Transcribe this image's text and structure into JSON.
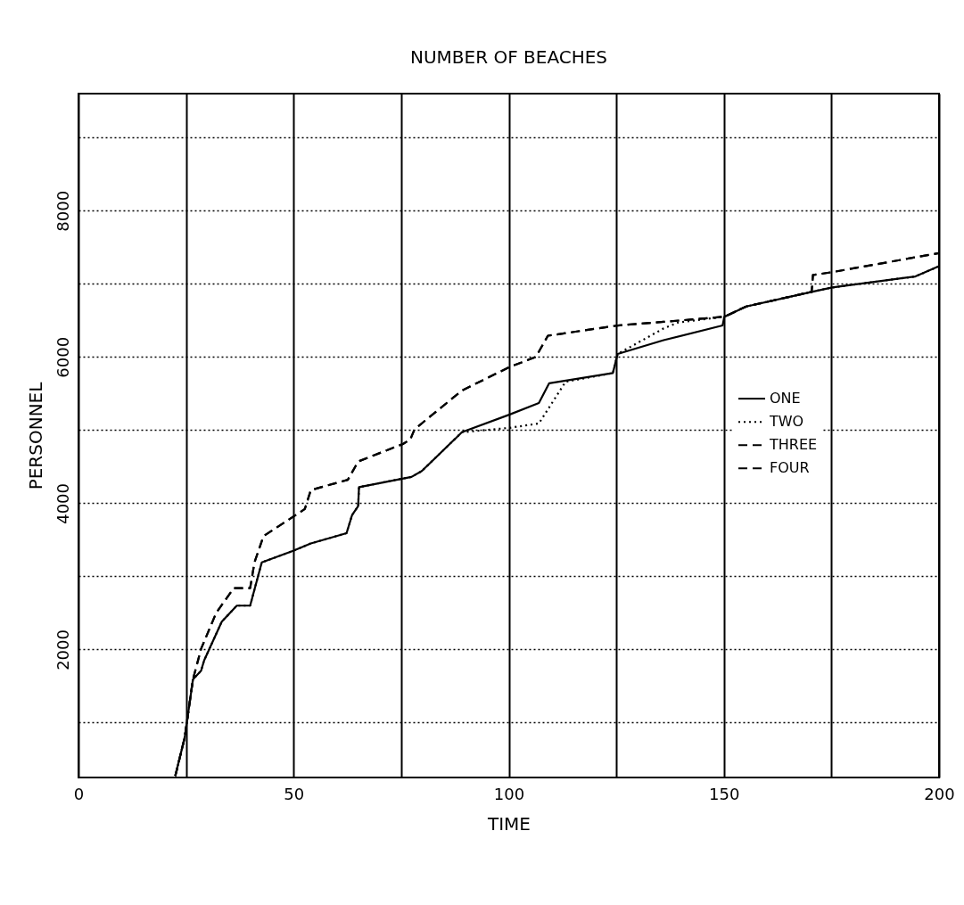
{
  "chart_data": {
    "type": "line",
    "title": "NUMBER OF BEACHES",
    "xlabel": "TIME",
    "ylabel": "PERSONNEL",
    "xlim": [
      0,
      200
    ],
    "ylim": [
      250,
      9600
    ],
    "xticks": [
      0,
      {
        "value": 25,
        "label": null
      },
      50,
      {
        "value": 75,
        "label": null
      },
      100,
      {
        "value": 125,
        "label": null
      },
      150,
      {
        "value": 175,
        "label": null
      },
      200
    ],
    "yticks": [
      {
        "value": 1000,
        "label": null
      },
      2000,
      {
        "value": 3000,
        "label": null
      },
      4000,
      {
        "value": 5000,
        "label": null
      },
      6000,
      {
        "value": 7000,
        "label": null
      },
      8000,
      {
        "value": 9000,
        "label": null
      }
    ],
    "grid": true,
    "legend": "right",
    "marker": "none",
    "series": [
      {
        "name": "ONE",
        "color": "#000000",
        "line_style": "solid",
        "x": [
          22.5,
          24.7,
          26.6,
          28.5,
          29.2,
          33.3,
          36.8,
          39.9,
          40.9,
          42.6,
          49.9,
          54,
          62.3,
          63.6,
          65,
          65.2,
          77.4,
          79.8,
          89.1,
          100.1,
          107,
          109.4,
          124.2,
          125.3,
          136,
          149.7,
          150.1,
          155.2,
          170.4,
          175.2,
          194.5,
          200
        ],
        "values": [
          270,
          800,
          1590,
          1710,
          1850,
          2380,
          2600,
          2600,
          2820,
          3190,
          3350,
          3450,
          3590,
          3840,
          3960,
          4220,
          4360,
          4440,
          4970,
          5210,
          5370,
          5640,
          5780,
          6040,
          6230,
          6430,
          6550,
          6690,
          6890,
          6950,
          7100,
          7240
        ]
      },
      {
        "name": "TWO",
        "color": "#000000",
        "line_style": "dotted",
        "x": [
          22.5,
          24.7,
          26.6,
          28.5,
          29.2,
          33.3,
          36.8,
          39.9,
          40.9,
          42.6,
          49.9,
          54,
          62.3,
          63.6,
          65,
          65.2,
          77.4,
          79.8,
          89.1,
          100.1,
          107,
          113.2,
          124.2,
          125.3,
          136,
          139.4,
          150.1,
          155.2,
          170.4,
          175.2,
          194.5,
          200
        ],
        "values": [
          270,
          800,
          1590,
          1710,
          1850,
          2380,
          2600,
          2600,
          2820,
          3190,
          3350,
          3450,
          3590,
          3840,
          3960,
          4220,
          4360,
          4440,
          4970,
          5030,
          5090,
          5660,
          5780,
          6040,
          6390,
          6470,
          6550,
          6690,
          6890,
          6950,
          7100,
          7240
        ]
      },
      {
        "name": "THREE",
        "color": "#000000",
        "line_style": "dashed",
        "x": [
          22.5,
          24.7,
          26.6,
          28.5,
          32,
          36.1,
          39.9,
          40.9,
          43,
          52.6,
          54,
          62.6,
          65,
          75.4,
          77.1,
          78.1,
          89.1,
          100.1,
          106.3,
          109.1,
          125.3,
          136,
          150.1,
          155.2,
          170.4,
          170.7,
          175.2,
          200
        ],
        "values": [
          270,
          800,
          1590,
          2010,
          2500,
          2840,
          2840,
          3190,
          3550,
          3920,
          4180,
          4320,
          4570,
          4810,
          4870,
          5010,
          5540,
          5860,
          6000,
          6290,
          6430,
          6480,
          6550,
          6690,
          6890,
          7120,
          7160,
          7420
        ]
      },
      {
        "name": "FOUR",
        "color": "#000000",
        "line_style": "dashed",
        "x": [
          22.5,
          24.7,
          26.6,
          28.5,
          32,
          36.1,
          39.9,
          40.9,
          43,
          52.6,
          54,
          62.6,
          65,
          75.4,
          77.1,
          78.1,
          89.1,
          100.1,
          106.3,
          109.1,
          125.3,
          136,
          150.1,
          155.2,
          170.4,
          170.7,
          175.2,
          200
        ],
        "values": [
          270,
          800,
          1590,
          2010,
          2500,
          2840,
          2840,
          3190,
          3550,
          3920,
          4180,
          4320,
          4570,
          4810,
          4870,
          5010,
          5540,
          5860,
          6000,
          6290,
          6430,
          6480,
          6550,
          6690,
          6890,
          7120,
          7160,
          7420
        ]
      }
    ]
  }
}
